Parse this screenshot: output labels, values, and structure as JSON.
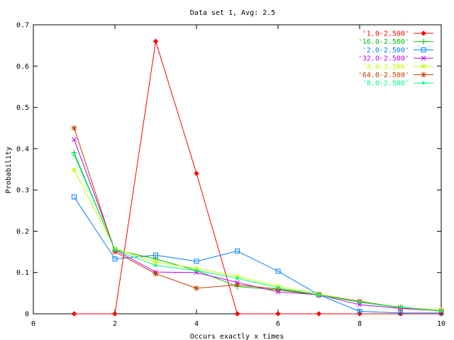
{
  "chart_data": {
    "type": "line",
    "title": "Data set 1, Avg: 2.5",
    "xlabel": "Occurs exactly x times",
    "ylabel": "Probability",
    "xlim": [
      0,
      10
    ],
    "ylim": [
      0,
      0.7
    ],
    "xticks": [
      "0",
      "2",
      "4",
      "6",
      "8",
      "10"
    ],
    "yticks": [
      "0",
      "0.1",
      "0.2",
      "0.3",
      "0.4",
      "0.5",
      "0.6",
      "0.7"
    ],
    "grid": false,
    "legend_position": "top-right",
    "x": [
      1,
      2,
      3,
      4,
      5,
      6,
      7,
      8,
      9,
      10
    ],
    "series": [
      {
        "name": "'1.0-2.500'",
        "color": "#ff0000",
        "marker": "diamond",
        "values": [
          0.0,
          0.0,
          0.66,
          0.34,
          0.0,
          0.0,
          0.0,
          0.0,
          0.0,
          0.0
        ]
      },
      {
        "name": "'16.0-2.500'",
        "color": "#00c000",
        "marker": "plus",
        "values": [
          0.39,
          0.155,
          0.133,
          0.105,
          0.066,
          0.058,
          0.045,
          0.028,
          0.015,
          0.008
        ]
      },
      {
        "name": "'2.0-2.500'",
        "color": "#0080ff",
        "marker": "square",
        "values": [
          0.283,
          0.133,
          0.142,
          0.127,
          0.152,
          0.103,
          0.046,
          0.006,
          0.002,
          0.002
        ]
      },
      {
        "name": "'32.0-2.500'",
        "color": "#c000ff",
        "marker": "cross",
        "values": [
          0.422,
          0.155,
          0.101,
          0.1,
          0.076,
          0.053,
          0.046,
          0.022,
          0.013,
          0.007
        ]
      },
      {
        "name": "'4.0-2.500'",
        "color": "#c0ff00",
        "marker": "star",
        "values": [
          0.348,
          0.158,
          0.125,
          0.11,
          0.091,
          0.067,
          0.048,
          0.03,
          0.016,
          0.009
        ]
      },
      {
        "name": "'64.0-2.500'",
        "color": "#c04000",
        "marker": "asterisk",
        "values": [
          0.45,
          0.15,
          0.097,
          0.062,
          0.07,
          0.06,
          0.046,
          0.03,
          0.015,
          0.007
        ]
      },
      {
        "name": "'8.0-2.500'",
        "color": "#00ff80",
        "marker": "diamond-small",
        "values": [
          0.385,
          0.155,
          0.117,
          0.105,
          0.086,
          0.063,
          0.046,
          0.028,
          0.016,
          0.007
        ]
      }
    ]
  }
}
